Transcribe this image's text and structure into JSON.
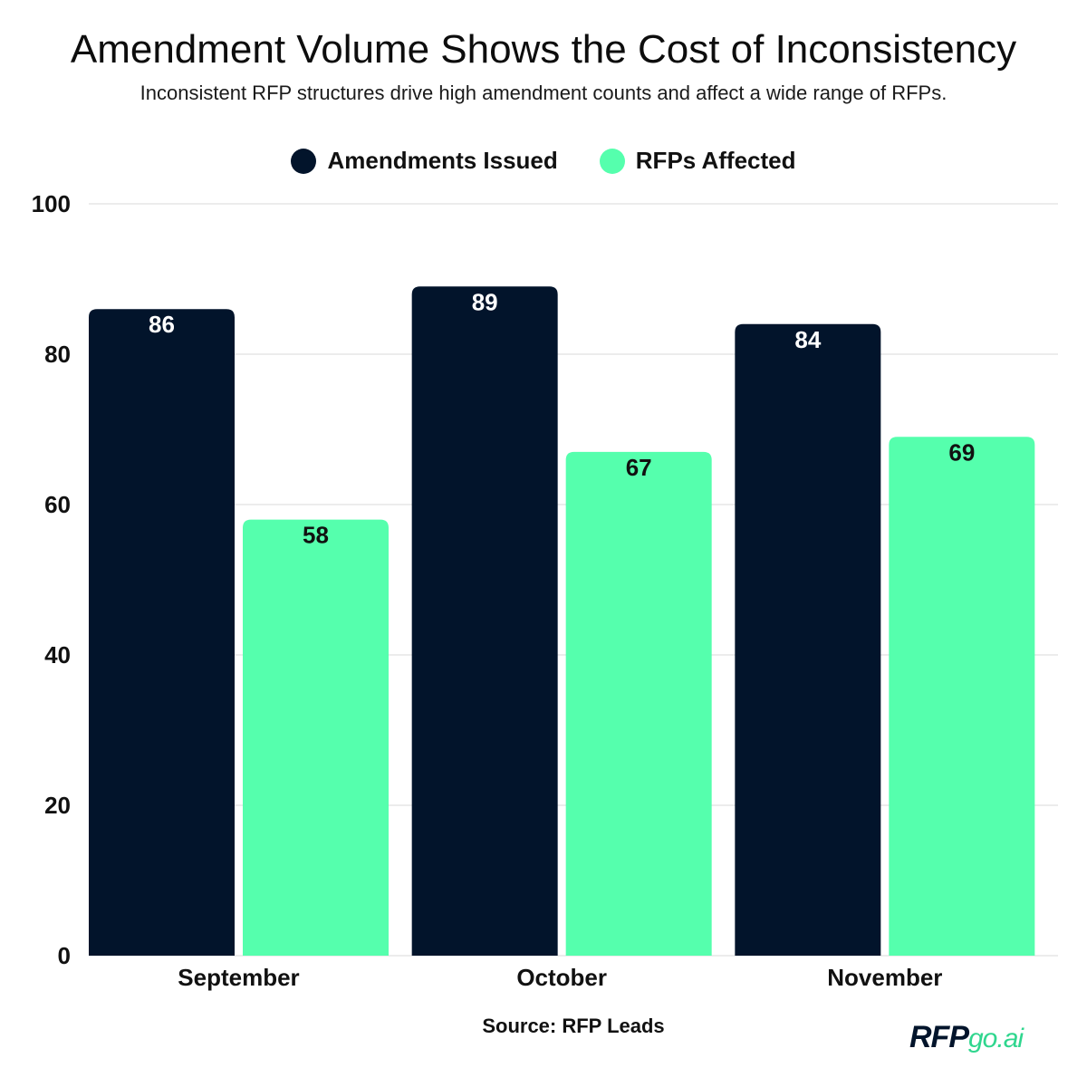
{
  "header": {
    "title": "Amendment Volume Shows the Cost of Inconsistency",
    "subtitle": "Inconsistent RFP structures drive high amendment counts and affect a wide range of RFPs."
  },
  "legend": {
    "series_a": "Amendments Issued",
    "series_b": "RFPs Affected"
  },
  "colors": {
    "series_a": "#02142b",
    "series_b": "#55ffad",
    "grid": "#d9d9d9"
  },
  "footer": {
    "source": "Source: RFP Leads",
    "logo_main": "RFP",
    "logo_suffix": "go.ai"
  },
  "chart_data": {
    "type": "bar",
    "title": "Amendment Volume Shows the Cost of Inconsistency",
    "subtitle": "Inconsistent RFP structures drive high amendment counts and affect a wide range of RFPs.",
    "categories": [
      "September",
      "October",
      "November"
    ],
    "series": [
      {
        "name": "Amendments Issued",
        "values": [
          86,
          89,
          84
        ]
      },
      {
        "name": "RFPs Affected",
        "values": [
          58,
          67,
          69
        ]
      }
    ],
    "yticks": [
      0,
      20,
      40,
      60,
      80,
      100
    ],
    "ylim": [
      0,
      100
    ],
    "xlabel": "",
    "ylabel": "",
    "legend_position": "top-center",
    "grid": true
  }
}
